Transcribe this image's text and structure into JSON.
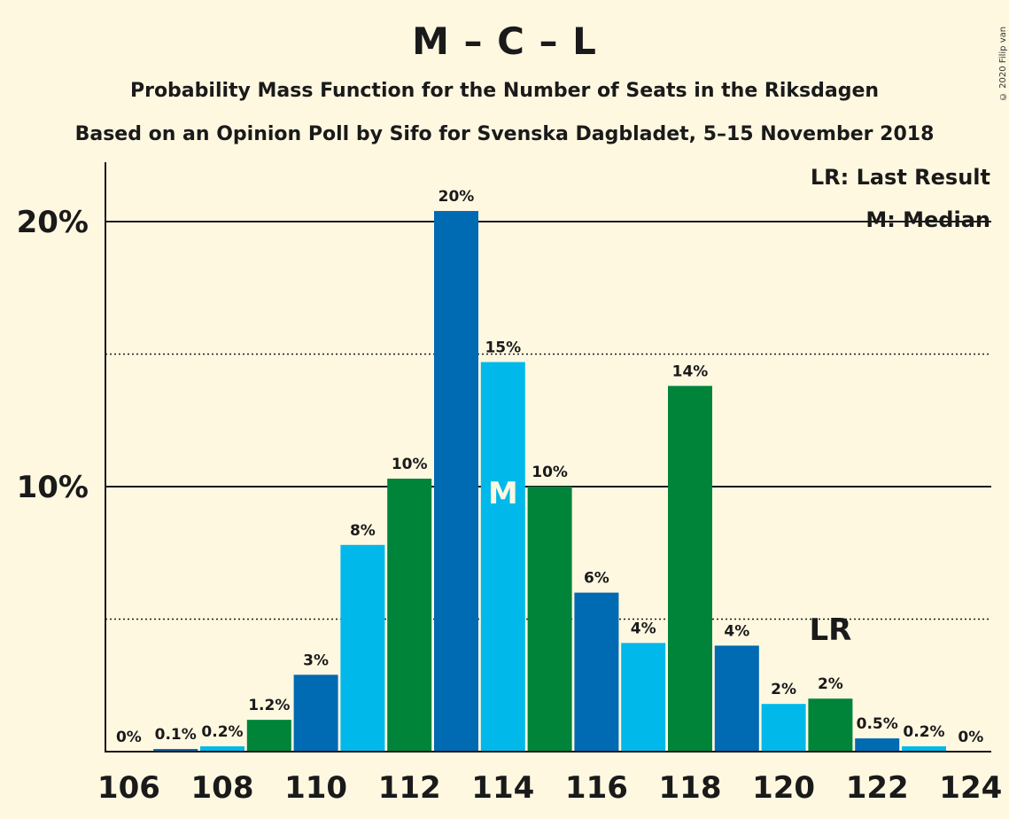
{
  "header": {
    "title": "M – C – L",
    "subtitle": "Probability Mass Function for the Number of Seats in the Riksdagen",
    "source": "Based on an Opinion Poll by Sifo for Svenska Dagbladet, 5–15 November 2018",
    "copyright": "© 2020 Filip van Laenen"
  },
  "legend": {
    "last_result": "LR: Last Result",
    "median": "M: Median"
  },
  "markers": {
    "median_label": "M",
    "median_seat": 114,
    "last_result_label": "LR",
    "last_result_seat": 121
  },
  "colors": {
    "background": "#fff8e1",
    "M": "#006ab3",
    "C": "#00b9ea",
    "L": "#00843a"
  },
  "chart_data": {
    "type": "bar",
    "x": [
      106,
      107,
      108,
      109,
      110,
      111,
      112,
      113,
      114,
      115,
      116,
      117,
      118,
      119,
      120,
      121,
      122,
      123,
      124
    ],
    "values": [
      0,
      0.1,
      0.2,
      1.2,
      2.9,
      7.8,
      10.3,
      20.4,
      14.7,
      10.0,
      6.0,
      4.1,
      13.8,
      4.0,
      1.8,
      2.0,
      0.5,
      0.2,
      0
    ],
    "data_labels": [
      "0%",
      "0.1%",
      "0.2%",
      "1.2%",
      "3%",
      "8%",
      "10%",
      "20%",
      "15%",
      "10%",
      "6%",
      "4%",
      "14%",
      "4%",
      "2%",
      "2%",
      "0.5%",
      "0.2%",
      "0%"
    ],
    "bar_colors": [
      "M",
      "M",
      "C",
      "L",
      "M",
      "C",
      "L",
      "M",
      "C",
      "L",
      "M",
      "C",
      "L",
      "M",
      "C",
      "L",
      "M",
      "C",
      "L"
    ],
    "x_tick_labels": [
      "106",
      "108",
      "110",
      "112",
      "114",
      "116",
      "118",
      "120",
      "122",
      "124"
    ],
    "y_tick_labels": [
      "10%",
      "20%"
    ],
    "ylim": [
      0,
      22.2
    ],
    "grid": {
      "solid": [
        10,
        20
      ],
      "dotted": [
        5,
        15
      ]
    }
  }
}
